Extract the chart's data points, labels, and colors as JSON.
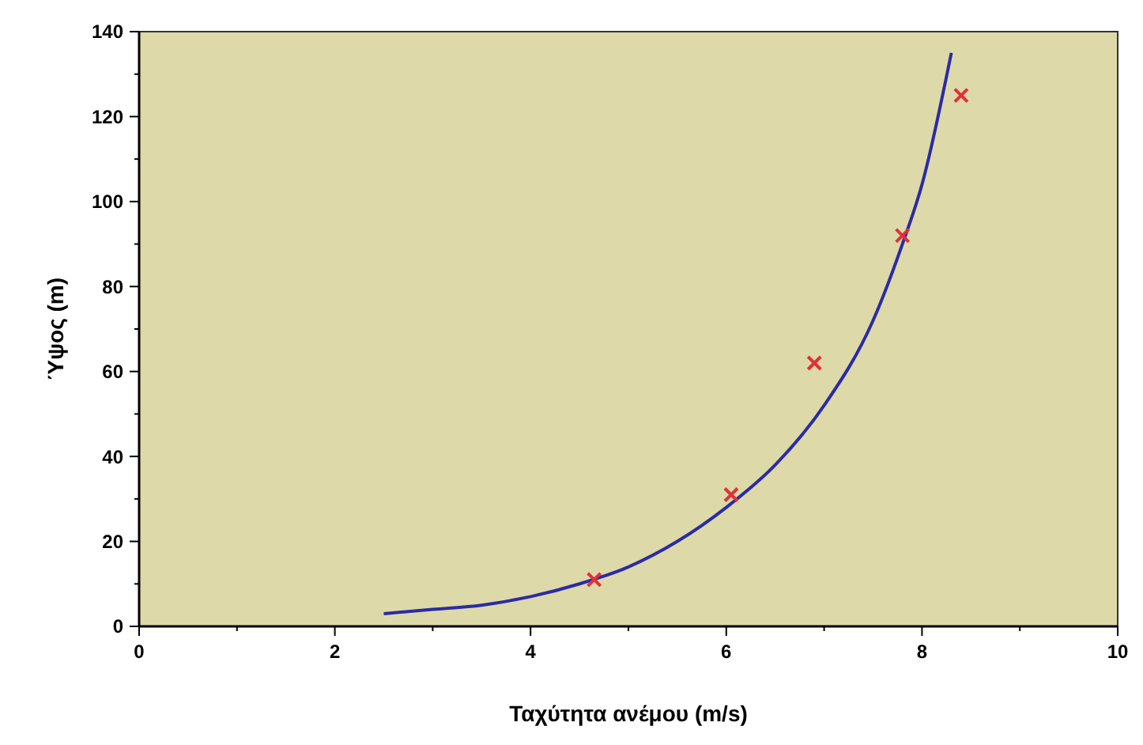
{
  "chart_data": {
    "type": "scatter",
    "xlabel": "Ταχύτητα ανέμου (m/s)",
    "ylabel": "Ύψος (m)",
    "xlim": [
      0,
      10
    ],
    "ylim": [
      0,
      140
    ],
    "xticks": [
      0,
      {
        "value": 1,
        "label": null
      },
      2,
      {
        "value": 3,
        "label": null
      },
      4,
      {
        "value": 5,
        "label": null
      },
      6,
      {
        "value": 7,
        "label": null
      },
      8,
      {
        "value": 9,
        "label": null
      },
      10
    ],
    "yticks": [
      0,
      {
        "value": 10,
        "label": null
      },
      20,
      {
        "value": 30,
        "label": null
      },
      40,
      {
        "value": 50,
        "label": null
      },
      60,
      {
        "value": 70,
        "label": null
      },
      80,
      {
        "value": 90,
        "label": null
      },
      100,
      {
        "value": 110,
        "label": null
      },
      120,
      {
        "value": 130,
        "label": null
      },
      140
    ],
    "grid": false,
    "series": [
      {
        "type": "line",
        "color": "#2b2ba6",
        "marker": "none",
        "line_style": "solid",
        "x": [
          2.5,
          3,
          3.5,
          4,
          4.5,
          5,
          5.5,
          6,
          6.5,
          7,
          7.5,
          7.8,
          8,
          8.3
        ],
        "values": [
          3,
          4,
          5,
          7,
          10,
          14,
          20,
          28,
          38,
          52,
          72,
          90,
          104,
          135
        ]
      },
      {
        "color": "#e0303a",
        "marker": "cross",
        "x": [
          4.65,
          6.05,
          6.9,
          7.8,
          8.4
        ],
        "values": [
          11,
          31,
          62,
          92,
          125
        ]
      }
    ]
  }
}
